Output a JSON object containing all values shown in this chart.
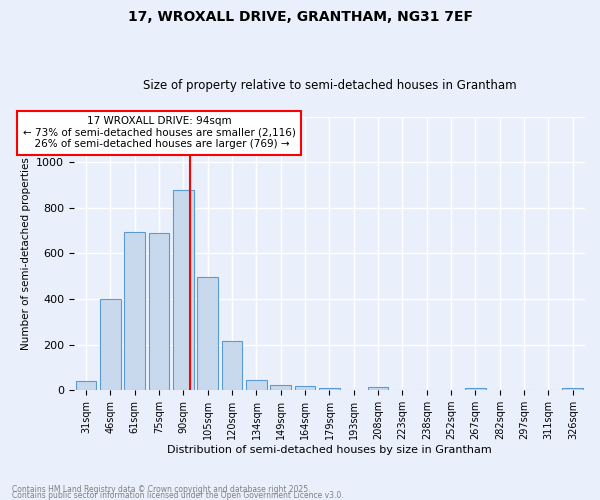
{
  "title1": "17, WROXALL DRIVE, GRANTHAM, NG31 7EF",
  "title2": "Size of property relative to semi-detached houses in Grantham",
  "xlabel": "Distribution of semi-detached houses by size in Grantham",
  "ylabel": "Number of semi-detached properties",
  "bar_labels": [
    "31sqm",
    "46sqm",
    "61sqm",
    "75sqm",
    "90sqm",
    "105sqm",
    "120sqm",
    "134sqm",
    "149sqm",
    "164sqm",
    "179sqm",
    "193sqm",
    "208sqm",
    "223sqm",
    "238sqm",
    "252sqm",
    "267sqm",
    "282sqm",
    "297sqm",
    "311sqm",
    "326sqm"
  ],
  "bar_values": [
    40,
    400,
    695,
    690,
    880,
    495,
    215,
    45,
    23,
    20,
    10,
    0,
    12,
    0,
    0,
    0,
    10,
    0,
    0,
    0,
    10
  ],
  "bar_color": "#c9d9ed",
  "bar_edge_color": "#5b9bd5",
  "vline_color": "red",
  "vline_index": 4.27,
  "ylim": [
    0,
    1200
  ],
  "annotation_label": "17 WROXALL DRIVE: 94sqm",
  "pct_smaller": "73% of semi-detached houses are smaller (2,116)",
  "pct_larger": "26% of semi-detached houses are larger (769)",
  "footnote1": "Contains HM Land Registry data © Crown copyright and database right 2025.",
  "footnote2": "Contains public sector information licensed under the Open Government Licence v3.0.",
  "background_color": "#eaf0fb",
  "grid_color": "white"
}
